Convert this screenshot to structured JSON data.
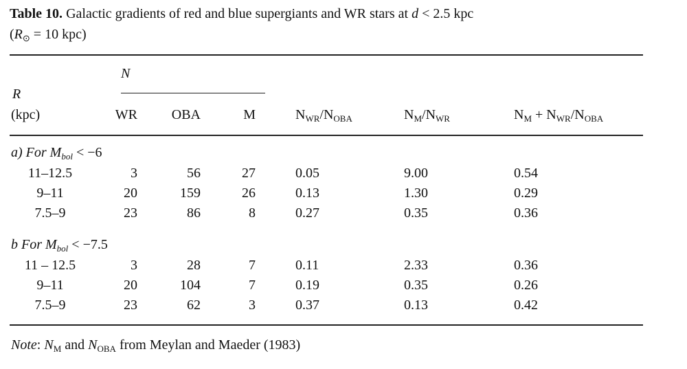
{
  "caption": {
    "label": "Table 10.",
    "text": "Galactic gradients of red and blue supergiants and WR stars at",
    "var": "d",
    "cond": "< 2.5 kpc",
    "line2": {
      "open": "(",
      "var": "R",
      "sub": "⊙",
      "rest": "= 10 kpc)"
    }
  },
  "header": {
    "group": "N",
    "r": "R",
    "r_unit": "(kpc)",
    "columns": [
      "WR",
      "OBA",
      "M"
    ],
    "ratios": [
      [
        "N",
        "WR",
        "/N",
        "OBA"
      ],
      [
        "N",
        "M",
        "/N",
        "WR"
      ],
      [
        "N",
        "M",
        " + N",
        "WR",
        "/N",
        "OBA"
      ]
    ]
  },
  "sections": [
    {
      "label": {
        "prefix": "a) For",
        "var": "M",
        "sub": "bol",
        "cond": "< −6"
      },
      "rows": [
        [
          "11–12.5",
          "3",
          "56",
          "27",
          "0.05",
          "9.00",
          "0.54"
        ],
        [
          "9–11",
          "20",
          "159",
          "26",
          "0.13",
          "1.30",
          "0.29"
        ],
        [
          "7.5–9",
          "23",
          "86",
          "8",
          "0.27",
          "0.35",
          "0.36"
        ]
      ]
    },
    {
      "label": {
        "prefix": "b For",
        "var": "M",
        "sub": "bol",
        "cond": "< −7.5"
      },
      "rows": [
        [
          "11 – 12.5",
          "3",
          "28",
          "7",
          "0.11",
          "2.33",
          "0.36"
        ],
        [
          "9–11",
          "20",
          "104",
          "7",
          "0.19",
          "0.35",
          "0.26"
        ],
        [
          "7.5–9",
          "23",
          "62",
          "3",
          "0.37",
          "0.13",
          "0.42"
        ]
      ]
    }
  ],
  "note": {
    "label": "Note",
    "sep": ":",
    "n1": "N",
    "s1": "M",
    "mid": "and",
    "n2": "N",
    "s2": "OBA",
    "rest": "from Meylan and Maeder (1983)"
  }
}
